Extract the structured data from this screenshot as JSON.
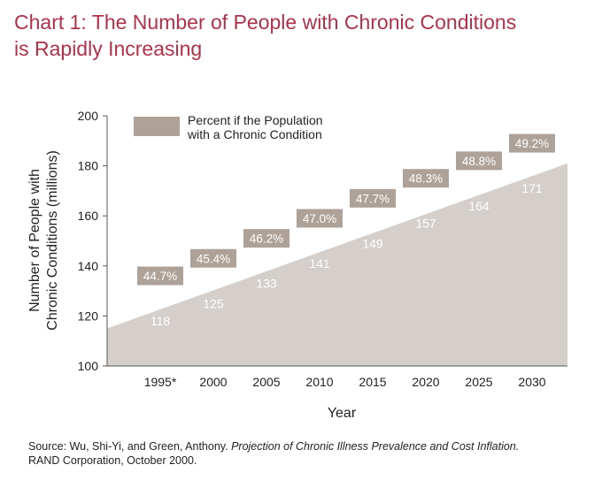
{
  "title_line1": "Chart 1: The Number of People with Chronic Conditions",
  "title_line2": "is Rapidly Increasing",
  "source": {
    "prefix": "Source: Wu, Shi-Yi, and Green, Anthony. ",
    "work": "Projection of Chronic Illness Prevalence and Cost Inflation.",
    "line2": "RAND Corporation, October 2000."
  },
  "colors": {
    "title": "#b0314a",
    "area": "#d5cfcb",
    "badge": "#aea298",
    "badge_text": "#ffffff",
    "value_text": "#ffffff"
  },
  "chart_data": {
    "type": "area",
    "title": "",
    "xlabel": "Year",
    "ylabel_line1": "Number of People with",
    "ylabel_line2": "Chronic Conditions (millions)",
    "categories": [
      "1995*",
      "2000",
      "2005",
      "2010",
      "2015",
      "2020",
      "2025",
      "2030"
    ],
    "ylim": [
      100,
      200
    ],
    "yticks": [
      100,
      120,
      140,
      160,
      180,
      200
    ],
    "series": [
      {
        "name": "Number of People with Chronic Conditions (millions)",
        "values": [
          118,
          125,
          133,
          141,
          149,
          157,
          164,
          171
        ]
      }
    ],
    "area_start_value": 115,
    "area_end_value": 181,
    "percent_labels": [
      "44.7%",
      "45.4%",
      "46.2%",
      "47.0%",
      "47.7%",
      "48.3%",
      "48.8%",
      "49.2%"
    ],
    "legend": {
      "line1": "Percent if the Population",
      "line2": "with a Chronic Condition",
      "position": "top-left"
    }
  }
}
